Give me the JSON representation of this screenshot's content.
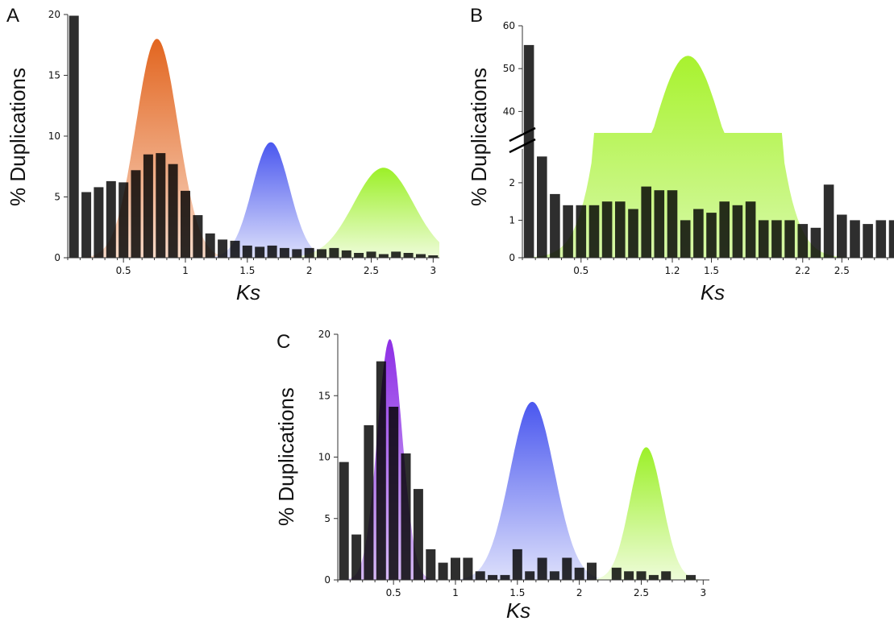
{
  "chart_data": [
    {
      "panel": "A",
      "type": "bar",
      "xlabel": "Ks",
      "ylabel": "% Duplications",
      "xlim": [
        0.05,
        3.05
      ],
      "ylim": [
        0,
        20
      ],
      "y_ticks": [
        0,
        5,
        10,
        15,
        20
      ],
      "x_ticks": [
        "0.5",
        "1",
        "1.5",
        "2",
        "2.5",
        "3"
      ],
      "x_tick_values": [
        0.5,
        1,
        1.5,
        2,
        2.5,
        3
      ],
      "bars": {
        "x": [
          0.1,
          0.2,
          0.3,
          0.4,
          0.5,
          0.6,
          0.7,
          0.8,
          0.9,
          1.0,
          1.1,
          1.2,
          1.3,
          1.4,
          1.5,
          1.6,
          1.7,
          1.8,
          1.9,
          2.0,
          2.1,
          2.2,
          2.3,
          2.4,
          2.5,
          2.6,
          2.7,
          2.8,
          2.9,
          3.0
        ],
        "values": [
          19.9,
          5.4,
          5.8,
          6.3,
          6.2,
          7.2,
          8.5,
          8.6,
          7.7,
          5.5,
          3.5,
          2.0,
          1.5,
          1.4,
          1.0,
          0.9,
          1.0,
          0.8,
          0.7,
          0.8,
          0.7,
          0.8,
          0.6,
          0.4,
          0.5,
          0.3,
          0.5,
          0.4,
          0.3,
          0.2
        ],
        "color": "#000000"
      },
      "curves": [
        {
          "mean": 0.77,
          "sd": 0.17,
          "peak": 18.0,
          "color_top": "#e2651f",
          "color_bottom": "#f9dac8"
        },
        {
          "mean": 1.69,
          "sd": 0.15,
          "peak": 9.5,
          "color_top": "#4a57ef",
          "color_bottom": "#dde0fb"
        },
        {
          "mean": 2.6,
          "sd": 0.24,
          "peak": 7.4,
          "color_top": "#9cf028",
          "color_bottom": "#eefcd9"
        }
      ]
    },
    {
      "panel": "B",
      "type": "bar",
      "xlabel": "Ks",
      "ylabel": "% Duplications",
      "xlim": [
        0.05,
        2.9
      ],
      "axis_break": true,
      "lower_ylim": [
        0,
        2.9
      ],
      "lower_y_ticks": [
        0,
        1,
        2
      ],
      "upper_ylim": [
        35,
        60
      ],
      "upper_y_ticks": [
        40,
        50,
        60
      ],
      "x_ticks": [
        "0.5",
        "1.2",
        "1.5",
        "2.2",
        "2.5"
      ],
      "x_tick_values": [
        0.5,
        1.2,
        1.5,
        2.2,
        2.5
      ],
      "bars": {
        "x": [
          0.1,
          0.2,
          0.3,
          0.4,
          0.5,
          0.6,
          0.7,
          0.8,
          0.9,
          1.0,
          1.1,
          1.2,
          1.3,
          1.4,
          1.5,
          1.6,
          1.7,
          1.8,
          1.9,
          2.0,
          2.1,
          2.2,
          2.3,
          2.4,
          2.5,
          2.6,
          2.7,
          2.8,
          2.9
        ],
        "values": [
          55.5,
          2.7,
          1.7,
          1.4,
          1.4,
          1.4,
          1.5,
          1.5,
          1.3,
          1.9,
          1.8,
          1.8,
          1.0,
          1.3,
          1.2,
          1.5,
          1.4,
          1.5,
          1.0,
          1.0,
          1.0,
          0.9,
          0.8,
          1.95,
          1.15,
          1.0,
          0.9,
          1.0,
          1.0
        ],
        "color": "#000000"
      },
      "curves": [
        {
          "mean": 1.32,
          "sd": 0.3,
          "peak": 53.0,
          "color_top": "#a8f22e",
          "color_bottom": "#d7f9a8"
        }
      ]
    },
    {
      "panel": "C",
      "type": "bar",
      "xlabel": "Ks",
      "ylabel": "% Duplications",
      "xlim": [
        0.05,
        3.05
      ],
      "ylim": [
        0,
        20
      ],
      "y_ticks": [
        0,
        5,
        10,
        15,
        20
      ],
      "x_ticks": [
        "0.5",
        "1",
        "1.5",
        "2",
        "2.5",
        "3"
      ],
      "x_tick_values": [
        0.5,
        1,
        1.5,
        2,
        2.5,
        3
      ],
      "bars": {
        "x": [
          0.1,
          0.2,
          0.3,
          0.4,
          0.5,
          0.6,
          0.7,
          0.8,
          0.9,
          1.0,
          1.1,
          1.2,
          1.3,
          1.4,
          1.5,
          1.6,
          1.7,
          1.8,
          1.9,
          2.0,
          2.1,
          2.2,
          2.3,
          2.4,
          2.5,
          2.6,
          2.7,
          2.8,
          2.9
        ],
        "values": [
          9.6,
          3.7,
          12.6,
          17.8,
          14.1,
          10.3,
          7.4,
          2.5,
          1.4,
          1.8,
          1.8,
          0.7,
          0.4,
          0.4,
          2.5,
          0.7,
          1.8,
          0.7,
          1.8,
          1.0,
          1.4,
          0,
          1.0,
          0.7,
          0.7,
          0.4,
          0.7,
          0,
          0.4
        ],
        "color": "#000000"
      },
      "curves": [
        {
          "mean": 0.47,
          "sd": 0.1,
          "peak": 19.6,
          "color_top": "#8e2fe6",
          "color_bottom": "#d6b9f5"
        },
        {
          "mean": 1.62,
          "sd": 0.18,
          "peak": 14.5,
          "color_top": "#4a57ef",
          "color_bottom": "#dde0fb"
        },
        {
          "mean": 2.54,
          "sd": 0.13,
          "peak": 10.8,
          "color_top": "#9cf028",
          "color_bottom": "#eefcd9"
        }
      ]
    }
  ]
}
